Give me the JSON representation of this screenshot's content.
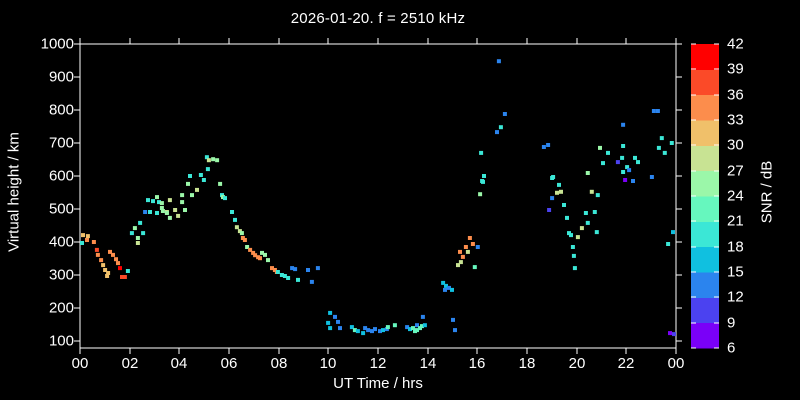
{
  "title": "2026-01-20. f = 2510 kHz",
  "x_axis": {
    "label": "UT Time / hrs",
    "tick_labels": [
      "00",
      "02",
      "04",
      "06",
      "08",
      "10",
      "12",
      "14",
      "16",
      "18",
      "20",
      "22",
      "00"
    ],
    "range_hours": [
      0,
      24
    ]
  },
  "y_axis": {
    "label": "Virtual height / km",
    "tick_values": [
      100,
      200,
      300,
      400,
      500,
      600,
      700,
      800,
      900,
      1000
    ],
    "range_km": [
      80,
      1000
    ]
  },
  "colorbar": {
    "label": "SNR / dB",
    "tick_values": [
      6,
      9,
      12,
      15,
      18,
      21,
      24,
      27,
      30,
      33,
      36,
      39,
      42
    ],
    "band_colors_low_to_high": [
      "#7A00F8",
      "#4B42F0",
      "#2B84EE",
      "#10C0E0",
      "#3BE7D6",
      "#66F7BE",
      "#9BF7A9",
      "#C8E393",
      "#F0C06A",
      "#FC8D4C",
      "#FB4A28",
      "#FF0000"
    ]
  },
  "chart_data": {
    "type": "scatter",
    "title": "2026-01-20. f = 2510 kHz",
    "xlabel": "UT Time / hrs",
    "ylabel": "Virtual height / km",
    "color_axis_label": "SNR / dB",
    "x_range": [
      0,
      24
    ],
    "y_range": [
      80,
      1000
    ],
    "snr_range": [
      6,
      42
    ],
    "grid": false,
    "marker": "square",
    "points_t_h_snr": [
      [
        0.08,
        397,
        19
      ],
      [
        0.12,
        421,
        31
      ],
      [
        0.28,
        406,
        34
      ],
      [
        0.32,
        418,
        31
      ],
      [
        0.56,
        400,
        34
      ],
      [
        0.68,
        376,
        37
      ],
      [
        0.72,
        361,
        34
      ],
      [
        0.85,
        345,
        34
      ],
      [
        0.93,
        330,
        31
      ],
      [
        1.01,
        315,
        31
      ],
      [
        1.09,
        297,
        31
      ],
      [
        1.13,
        306,
        31
      ],
      [
        1.21,
        370,
        34
      ],
      [
        1.33,
        361,
        34
      ],
      [
        1.45,
        348,
        34
      ],
      [
        1.53,
        336,
        34
      ],
      [
        1.61,
        321,
        40
      ],
      [
        1.69,
        294,
        37
      ],
      [
        1.81,
        294,
        37
      ],
      [
        1.93,
        312,
        19
      ],
      [
        2.09,
        427,
        19
      ],
      [
        2.21,
        442,
        25
      ],
      [
        2.33,
        412,
        25
      ],
      [
        2.33,
        397,
        28
      ],
      [
        2.42,
        458,
        19
      ],
      [
        2.54,
        427,
        19
      ],
      [
        2.62,
        491,
        13
      ],
      [
        2.74,
        527,
        19
      ],
      [
        2.82,
        491,
        19
      ],
      [
        2.94,
        524,
        19
      ],
      [
        3.1,
        536,
        25
      ],
      [
        3.1,
        488,
        19
      ],
      [
        3.18,
        521,
        19
      ],
      [
        3.3,
        518,
        25
      ],
      [
        3.3,
        503,
        25
      ],
      [
        3.34,
        494,
        25
      ],
      [
        3.5,
        491,
        28
      ],
      [
        3.5,
        488,
        25
      ],
      [
        3.62,
        527,
        28
      ],
      [
        3.62,
        473,
        25
      ],
      [
        3.83,
        497,
        28
      ],
      [
        3.95,
        479,
        28
      ],
      [
        4.11,
        521,
        25
      ],
      [
        4.11,
        542,
        25
      ],
      [
        4.23,
        497,
        25
      ],
      [
        4.35,
        576,
        25
      ],
      [
        4.43,
        600,
        19
      ],
      [
        4.51,
        542,
        25
      ],
      [
        4.71,
        558,
        28
      ],
      [
        4.87,
        603,
        19
      ],
      [
        4.99,
        588,
        19
      ],
      [
        5.11,
        657,
        19
      ],
      [
        5.15,
        621,
        19
      ],
      [
        5.19,
        648,
        28
      ],
      [
        5.36,
        651,
        25
      ],
      [
        5.52,
        648,
        25
      ],
      [
        5.64,
        576,
        25
      ],
      [
        5.72,
        542,
        19
      ],
      [
        5.76,
        536,
        25
      ],
      [
        5.84,
        533,
        19
      ],
      [
        6.12,
        491,
        19
      ],
      [
        6.24,
        467,
        19
      ],
      [
        6.32,
        445,
        28
      ],
      [
        6.44,
        433,
        28
      ],
      [
        6.52,
        427,
        25
      ],
      [
        6.56,
        412,
        34
      ],
      [
        6.64,
        406,
        34
      ],
      [
        6.73,
        385,
        25
      ],
      [
        6.85,
        376,
        34
      ],
      [
        6.97,
        367,
        34
      ],
      [
        7.05,
        360,
        34
      ],
      [
        7.17,
        354,
        34
      ],
      [
        7.25,
        351,
        34
      ],
      [
        7.33,
        367,
        25
      ],
      [
        7.45,
        361,
        25
      ],
      [
        7.57,
        345,
        25
      ],
      [
        7.73,
        321,
        34
      ],
      [
        7.85,
        315,
        34
      ],
      [
        7.93,
        309,
        34
      ],
      [
        7.97,
        309,
        19
      ],
      [
        8.13,
        300,
        19
      ],
      [
        8.25,
        297,
        19
      ],
      [
        8.38,
        291,
        19
      ],
      [
        8.54,
        321,
        13
      ],
      [
        8.66,
        318,
        13
      ],
      [
        8.78,
        285,
        19
      ],
      [
        9.18,
        315,
        13
      ],
      [
        9.34,
        279,
        13
      ],
      [
        9.58,
        321,
        13
      ],
      [
        9.99,
        155,
        16
      ],
      [
        10.07,
        185,
        16
      ],
      [
        10.07,
        139,
        16
      ],
      [
        10.27,
        173,
        13
      ],
      [
        10.39,
        158,
        13
      ],
      [
        10.47,
        139,
        13
      ],
      [
        10.95,
        142,
        16
      ],
      [
        11.07,
        133,
        22
      ],
      [
        11.19,
        130,
        16
      ],
      [
        11.4,
        124,
        16
      ],
      [
        11.48,
        139,
        13
      ],
      [
        11.6,
        133,
        13
      ],
      [
        11.76,
        130,
        13
      ],
      [
        11.88,
        136,
        13
      ],
      [
        12.08,
        130,
        13
      ],
      [
        12.2,
        133,
        16
      ],
      [
        12.36,
        136,
        13
      ],
      [
        12.4,
        142,
        22
      ],
      [
        12.68,
        148,
        22
      ],
      [
        13.17,
        142,
        13
      ],
      [
        13.29,
        136,
        16
      ],
      [
        13.41,
        139,
        22
      ],
      [
        13.49,
        130,
        22
      ],
      [
        13.57,
        133,
        22
      ],
      [
        13.57,
        148,
        13
      ],
      [
        13.69,
        139,
        22
      ],
      [
        13.77,
        145,
        22
      ],
      [
        13.81,
        173,
        13
      ],
      [
        13.89,
        148,
        16
      ],
      [
        14.62,
        276,
        16
      ],
      [
        14.7,
        255,
        13
      ],
      [
        14.74,
        267,
        16
      ],
      [
        14.86,
        261,
        13
      ],
      [
        14.98,
        255,
        16
      ],
      [
        15.02,
        164,
        13
      ],
      [
        15.1,
        133,
        13
      ],
      [
        15.22,
        330,
        28
      ],
      [
        15.3,
        370,
        34
      ],
      [
        15.34,
        339,
        28
      ],
      [
        15.42,
        355,
        34
      ],
      [
        15.54,
        385,
        34
      ],
      [
        15.62,
        370,
        28
      ],
      [
        15.7,
        412,
        34
      ],
      [
        15.82,
        394,
        34
      ],
      [
        15.9,
        324,
        22
      ],
      [
        16.02,
        385,
        13
      ],
      [
        16.11,
        545,
        25
      ],
      [
        16.15,
        670,
        19
      ],
      [
        16.19,
        585,
        19
      ],
      [
        16.23,
        582,
        19
      ],
      [
        16.27,
        600,
        19
      ],
      [
        16.79,
        733,
        13
      ],
      [
        16.87,
        948,
        13
      ],
      [
        16.95,
        748,
        19
      ],
      [
        17.11,
        788,
        13
      ],
      [
        18.68,
        688,
        13
      ],
      [
        18.85,
        694,
        13
      ],
      [
        18.89,
        497,
        10
      ],
      [
        19.01,
        594,
        19
      ],
      [
        19.01,
        533,
        13
      ],
      [
        19.05,
        597,
        19
      ],
      [
        19.21,
        549,
        28
      ],
      [
        19.29,
        573,
        19
      ],
      [
        19.37,
        552,
        28
      ],
      [
        19.49,
        512,
        19
      ],
      [
        19.61,
        473,
        19
      ],
      [
        19.69,
        427,
        19
      ],
      [
        19.77,
        421,
        19
      ],
      [
        19.85,
        385,
        19
      ],
      [
        19.89,
        358,
        19
      ],
      [
        19.93,
        321,
        19
      ],
      [
        20.05,
        415,
        28
      ],
      [
        20.21,
        442,
        28
      ],
      [
        20.37,
        488,
        19
      ],
      [
        20.45,
        458,
        19
      ],
      [
        20.45,
        609,
        25
      ],
      [
        20.61,
        552,
        28
      ],
      [
        20.73,
        491,
        19
      ],
      [
        20.81,
        430,
        19
      ],
      [
        20.85,
        542,
        19
      ],
      [
        20.94,
        685,
        25
      ],
      [
        21.06,
        639,
        19
      ],
      [
        21.26,
        670,
        19
      ],
      [
        21.66,
        642,
        10
      ],
      [
        21.83,
        655,
        19
      ],
      [
        21.87,
        691,
        19
      ],
      [
        21.87,
        612,
        19
      ],
      [
        21.87,
        755,
        13
      ],
      [
        21.95,
        588,
        7
      ],
      [
        22.03,
        627,
        19
      ],
      [
        22.11,
        618,
        13
      ],
      [
        22.27,
        585,
        13
      ],
      [
        22.35,
        655,
        19
      ],
      [
        22.47,
        642,
        19
      ],
      [
        23.03,
        597,
        13
      ],
      [
        23.11,
        797,
        13
      ],
      [
        23.27,
        797,
        13
      ],
      [
        23.31,
        685,
        19
      ],
      [
        23.43,
        715,
        19
      ],
      [
        23.55,
        670,
        19
      ],
      [
        23.68,
        394,
        19
      ],
      [
        23.76,
        124,
        7
      ],
      [
        23.83,
        700,
        19
      ],
      [
        23.88,
        430,
        16
      ],
      [
        23.92,
        121,
        10
      ]
    ]
  }
}
